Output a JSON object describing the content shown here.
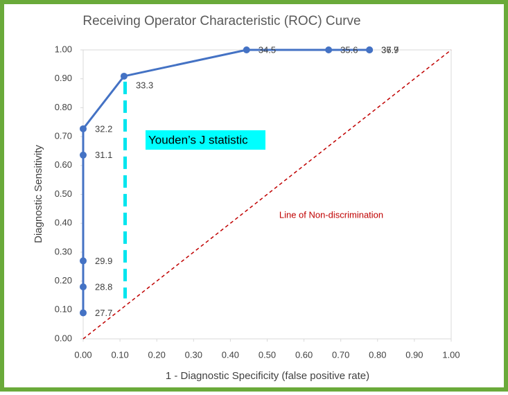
{
  "chart_data": {
    "type": "line",
    "title": "Receiving Operator Characteristic (ROC) Curve",
    "x_label": "1 - Diagnostic Specificity (false positive rate)",
    "y_label": "Diagnostic Sensitivity",
    "annotations": [
      "Line of Non-discrimination",
      "Youden’s J statistic"
    ],
    "xlim": [
      0,
      1
    ],
    "ylim": [
      0,
      1
    ],
    "xticks": [
      {
        "value": 0,
        "label": "0.00"
      },
      {
        "value": 0.1,
        "label": "0.10"
      },
      {
        "value": 0.2,
        "label": "0.20"
      },
      {
        "value": 0.3,
        "label": "0.30"
      },
      {
        "value": 0.4,
        "label": "0.40"
      },
      {
        "value": 0.5,
        "label": "0.50"
      },
      {
        "value": 0.6,
        "label": "0.60"
      },
      {
        "value": 0.7,
        "label": "0.70"
      },
      {
        "value": 0.8,
        "label": "0.80"
      },
      {
        "value": 0.9,
        "label": "0.90"
      },
      {
        "value": 1,
        "label": "1.00"
      }
    ],
    "yticks": [
      {
        "value": 0,
        "label": "0.00"
      },
      {
        "value": 0.1,
        "label": "0.10"
      },
      {
        "value": 0.2,
        "label": "0.20"
      },
      {
        "value": 0.3,
        "label": "0.30"
      },
      {
        "value": 0.4,
        "label": "0.40"
      },
      {
        "value": 0.5,
        "label": "0.50"
      },
      {
        "value": 0.6,
        "label": "0.60"
      },
      {
        "value": 0.7,
        "label": "0.70"
      },
      {
        "value": 0.8,
        "label": "0.80"
      },
      {
        "value": 0.9,
        "label": "0.90"
      },
      {
        "value": 1,
        "label": "1.00"
      }
    ],
    "series": [
      {
        "color": "#4472c4",
        "style": "solid",
        "markers": true,
        "x": [
          0,
          0,
          0,
          0,
          0,
          0.111,
          0.444,
          0.667,
          0.778,
          0.778
        ],
        "values": [
          0.09,
          0.18,
          0.27,
          0.636,
          0.727,
          0.909,
          1,
          1,
          1,
          1
        ],
        "point_labels": [
          "27.7",
          "28.8",
          "29.9",
          "31.1",
          "32.2",
          "33.3",
          "34.5",
          "35.6",
          "36.7",
          "37.9"
        ]
      },
      {
        "color": "#c00000",
        "style": "dashed",
        "markers": false,
        "x": [
          0,
          1
        ],
        "values": [
          0,
          1
        ]
      },
      {
        "color": "#00e5ee",
        "style": "youden",
        "markers": false,
        "x": [
          0.114,
          0.114
        ],
        "values": [
          0.89,
          0.14
        ]
      }
    ]
  }
}
